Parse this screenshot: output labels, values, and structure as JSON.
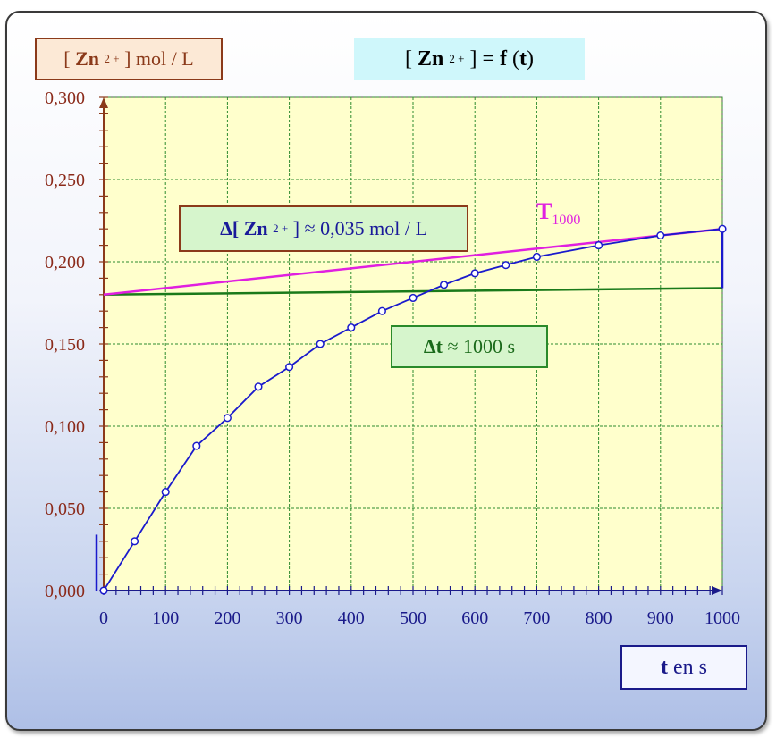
{
  "labels": {
    "ylabel_open": "[",
    "ylabel_species": "Zn",
    "ylabel_charge": "2 +",
    "ylabel_unit": "] mol / L",
    "title_open": "[",
    "title_species": "Zn",
    "title_charge": "2 +",
    "title_mid": "] =",
    "title_f": "f",
    "title_paren_open": "(",
    "title_t": "t",
    "title_paren_close": ")",
    "xlabel_t": "t",
    "xlabel_unit": "en s",
    "delta_c_prefix": "Δ[",
    "delta_c_species": "Zn",
    "delta_c_charge": "2 +",
    "delta_c_value": "] ≈ 0,035 mol / L",
    "delta_t_prefix": "Δt",
    "delta_t_value": "≈ 1000 s",
    "tangent_letter": "T",
    "tangent_sub": "1000"
  },
  "colors": {
    "plot_bg": "#ffffcc",
    "grid": "#2e8b2e",
    "axis": "#8b3a1a",
    "curve": "#1a1acc",
    "tangent": "#e020e0",
    "horizontal": "#1a7a1a",
    "x_ticks": "#1a1a8a",
    "y_ticks": "#8b2a1a"
  },
  "chart_data": {
    "type": "line",
    "x_ticks": [
      "0",
      "100",
      "200",
      "300",
      "400",
      "500",
      "600",
      "700",
      "800",
      "900",
      "1000"
    ],
    "y_ticks": [
      "0,000",
      "0,050",
      "0,100",
      "0,150",
      "0,200",
      "0,250",
      "0,300"
    ],
    "xlim": [
      0,
      1000
    ],
    "ylim": [
      0,
      0.3
    ],
    "grid": true,
    "series": [
      {
        "x": [
          0,
          50,
          100,
          150,
          200,
          250,
          300,
          350,
          400,
          450,
          500,
          550,
          600,
          650,
          700,
          800,
          900,
          1000
        ],
        "y": [
          0.0,
          0.03,
          0.06,
          0.088,
          0.105,
          0.124,
          0.136,
          0.15,
          0.16,
          0.17,
          0.178,
          0.186,
          0.193,
          0.198,
          0.203,
          0.21,
          0.216,
          0.22
        ]
      }
    ],
    "tangent_line": {
      "x": [
        0,
        1000
      ],
      "y": [
        0.18,
        0.22
      ]
    },
    "horizontal_line": {
      "x": [
        0,
        1000
      ],
      "y": [
        0.18,
        0.184
      ]
    },
    "vertical_marker": {
      "x": 1000,
      "y": [
        0.184,
        0.22
      ]
    },
    "origin_marker": {
      "x": 0,
      "y": [
        0.0,
        0.034
      ]
    }
  }
}
